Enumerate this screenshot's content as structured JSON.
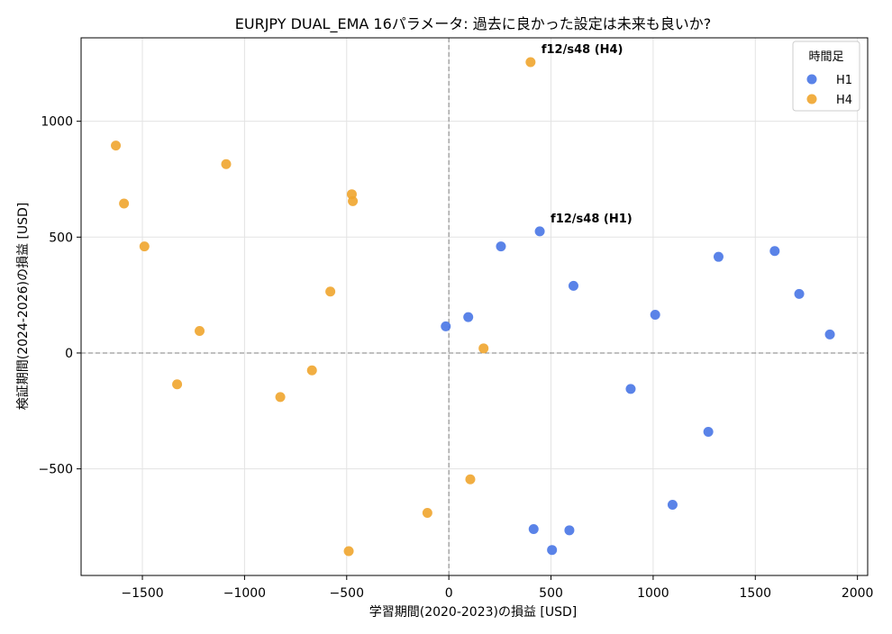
{
  "chart_data": {
    "type": "scatter",
    "title": "EURJPY DUAL_EMA 16パラメータ: 過去に良かった設定は未来も良いか?",
    "xlabel": "学習期間(2020-2023)の損益 [USD]",
    "ylabel": "検証期間(2024-2026)の損益 [USD]",
    "xlim": [
      -1800,
      2050
    ],
    "ylim": [
      -960,
      1360
    ],
    "xticks": [
      -1500,
      -1000,
      -500,
      0,
      500,
      1000,
      1500,
      2000
    ],
    "xtick_labels": [
      "−1500",
      "−1000",
      "−500",
      "0",
      "500",
      "1000",
      "1500",
      "2000"
    ],
    "yticks": [
      -500,
      0,
      500,
      1000
    ],
    "ytick_labels": [
      "−500",
      "0",
      "500",
      "1000"
    ],
    "grid": true,
    "reference_lines": {
      "x": 0,
      "y": 0
    },
    "legend": {
      "title": "時間足",
      "placement": "top-right"
    },
    "series": [
      {
        "name": "H1",
        "color": "#4876e6",
        "points": [
          [
            -15,
            115
          ],
          [
            95,
            155
          ],
          [
            255,
            460
          ],
          [
            445,
            525
          ],
          [
            610,
            290
          ],
          [
            1010,
            165
          ],
          [
            1320,
            415
          ],
          [
            1595,
            440
          ],
          [
            1715,
            255
          ],
          [
            1865,
            80
          ],
          [
            890,
            -155
          ],
          [
            1270,
            -340
          ],
          [
            1095,
            -655
          ],
          [
            415,
            -760
          ],
          [
            590,
            -765
          ],
          [
            505,
            -850
          ]
        ]
      },
      {
        "name": "H4",
        "color": "#f0a52e",
        "points": [
          [
            400,
            1255
          ],
          [
            -1630,
            895
          ],
          [
            -1090,
            815
          ],
          [
            -1590,
            645
          ],
          [
            -475,
            685
          ],
          [
            -470,
            655
          ],
          [
            -1490,
            460
          ],
          [
            -580,
            265
          ],
          [
            -1220,
            95
          ],
          [
            170,
            20
          ],
          [
            -670,
            -75
          ],
          [
            -1330,
            -135
          ],
          [
            -825,
            -190
          ],
          [
            105,
            -545
          ],
          [
            -105,
            -690
          ],
          [
            -490,
            -855
          ]
        ]
      }
    ],
    "annotations": [
      {
        "text": "f12/s48 (H4)",
        "x": 400,
        "y": 1255
      },
      {
        "text": "f12/s48 (H1)",
        "x": 445,
        "y": 525
      }
    ]
  }
}
